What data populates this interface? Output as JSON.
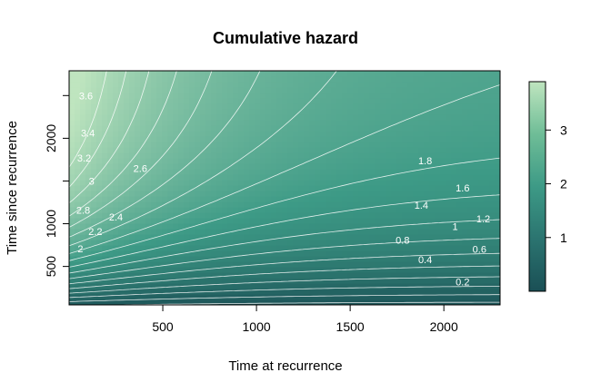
{
  "chart_data": {
    "type": "heatmap",
    "subtype": "filled-contour",
    "title": "Cumulative hazard",
    "xlabel": "Time at recurrence",
    "ylabel": "Time since recurrence",
    "xlim": [
      0,
      2300
    ],
    "ylim": [
      50,
      2790
    ],
    "x_ticks": [
      500,
      1000,
      1500,
      2000
    ],
    "y_ticks_labeled": [
      500,
      1000,
      2000
    ],
    "y_ticks_minor": [
      1500,
      2500
    ],
    "color_scale": {
      "min": 0,
      "max": 3.9,
      "ticks": [
        1,
        2,
        3
      ],
      "low_color": "#1a4f55",
      "mid_color": "#3d9a86",
      "high_color": "#bfe5bf"
    },
    "contour_levels": [
      0.2,
      0.4,
      0.6,
      0.8,
      1,
      1.2,
      1.4,
      1.6,
      1.8,
      2,
      2.2,
      2.4,
      2.6,
      2.8,
      3,
      3.2,
      3.4,
      3.6
    ],
    "contour_labels": [
      {
        "text": "0.2",
        "x": 2100,
        "y": 320
      },
      {
        "text": "0.4",
        "x": 1900,
        "y": 580
      },
      {
        "text": "0.6",
        "x": 2190,
        "y": 705
      },
      {
        "text": "0.8",
        "x": 1780,
        "y": 810
      },
      {
        "text": "1",
        "x": 2060,
        "y": 970
      },
      {
        "text": "1.2",
        "x": 2210,
        "y": 1060
      },
      {
        "text": "1.4",
        "x": 1880,
        "y": 1220
      },
      {
        "text": "1.6",
        "x": 2100,
        "y": 1420
      },
      {
        "text": "1.8",
        "x": 1900,
        "y": 1740
      },
      {
        "text": "2",
        "x": 60,
        "y": 710
      },
      {
        "text": "2.2",
        "x": 140,
        "y": 910
      },
      {
        "text": "2.4",
        "x": 250,
        "y": 1080
      },
      {
        "text": "2.6",
        "x": 380,
        "y": 1650
      },
      {
        "text": "2.8",
        "x": 75,
        "y": 1160
      },
      {
        "text": "3",
        "x": 120,
        "y": 1500
      },
      {
        "text": "3.2",
        "x": 80,
        "y": 1770
      },
      {
        "text": "3.4",
        "x": 100,
        "y": 2060
      },
      {
        "text": "3.6",
        "x": 90,
        "y": 2500
      }
    ]
  }
}
